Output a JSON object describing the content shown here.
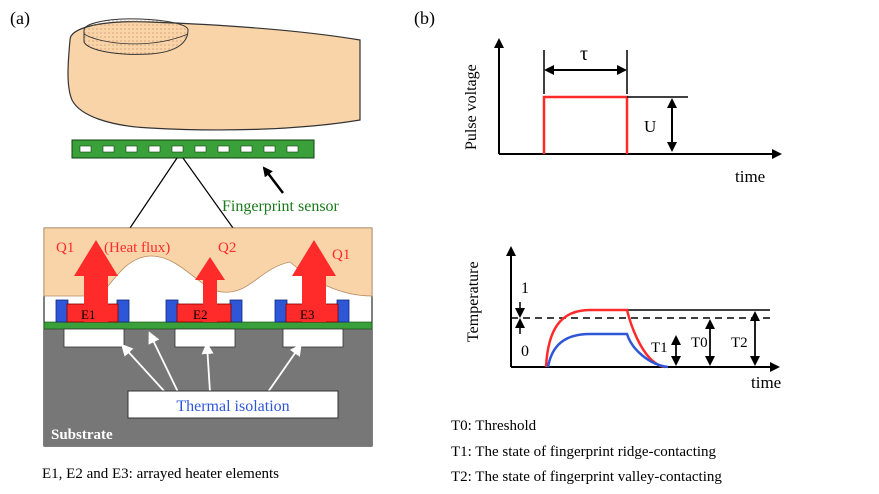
{
  "panel_a": {
    "label": "(a)",
    "sensor_label": "Fingerprint sensor",
    "q1_left": "Q1",
    "heat_flux": "(Heat flux)",
    "q2": "Q2",
    "q1_right": "Q1",
    "e1": "E1",
    "e2": "E2",
    "e3": "E3",
    "thermal_isolation": "Thermal isolation",
    "substrate": "Substrate",
    "caption": "E1, E2 and E3: arrayed heater elements"
  },
  "panel_b": {
    "label": "(b)",
    "pulse": {
      "ylabel": "Pulse voltage",
      "xlabel": "time",
      "tau": "τ",
      "u": "U"
    },
    "temperature": {
      "ylabel": "Temperature",
      "xlabel": "time",
      "one": "1",
      "zero": "0",
      "t1": "T1",
      "t0": "T0",
      "t2": "T2"
    },
    "legend": {
      "t0": "T0: Threshold",
      "t1": "T1: The state of fingerprint ridge-contacting",
      "t2": "T2: The state of fingerprint valley-contacting"
    }
  },
  "colors": {
    "skin": "#f9d4a9",
    "red": "#ff2a2a",
    "blue": "#2e57d8",
    "green": "#1a7a1a",
    "sensor_green": "#3aa03a",
    "substrate": "#777777"
  }
}
